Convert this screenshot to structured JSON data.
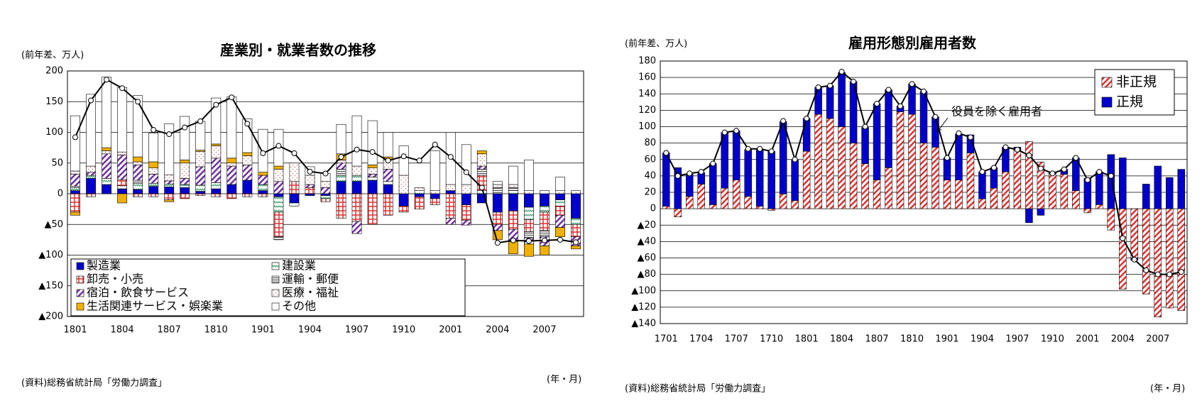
{
  "chart_data": [
    {
      "type": "bar",
      "stacked": true,
      "title": "産業別・就業者数の推移",
      "y_label": "(前年差、万人)",
      "x_label": "(年・月)",
      "source": "(資料)総務省統計局「労働力調査」",
      "categories": [
        "1801",
        null,
        null,
        "1804",
        null,
        null,
        "1807",
        null,
        null,
        "1810",
        null,
        null,
        "1901",
        null,
        null,
        "1904",
        null,
        null,
        "1907",
        null,
        null,
        "1910",
        null,
        null,
        "2001",
        null,
        null,
        "2004",
        null,
        null,
        "2007",
        null,
        null
      ],
      "ylim": [
        -200,
        200
      ],
      "yticks": [
        {
          "value": -200,
          "label": "▲200"
        },
        {
          "value": -150,
          "label": "▲150"
        },
        {
          "value": -100,
          "label": "▲100"
        },
        {
          "value": -50,
          "label": "▲50"
        },
        0,
        50,
        100,
        150,
        200
      ],
      "grid": true,
      "legend": "lower left",
      "series": [
        {
          "name": "製造業",
          "color": "#0000cc",
          "pattern": "solid",
          "values": [
            5,
            25,
            15,
            8,
            7,
            12,
            11,
            10,
            4,
            8,
            15,
            22,
            5,
            -5,
            -15,
            -3,
            -3,
            20,
            20,
            22,
            15,
            -20,
            -5,
            -8,
            5,
            -18,
            -15,
            -30,
            -28,
            -22,
            -20,
            -10,
            -40
          ]
        },
        {
          "name": "建設業",
          "color": "#339966",
          "pattern": "zigzag",
          "values": [
            5,
            5,
            10,
            5,
            10,
            5,
            5,
            5,
            10,
            10,
            0,
            0,
            10,
            -25,
            -5,
            0,
            -5,
            10,
            10,
            5,
            5,
            0,
            5,
            0,
            0,
            0,
            5,
            0,
            5,
            -20,
            -10,
            -10,
            -10
          ]
        },
        {
          "name": "卸売・小売",
          "color": "#e03030",
          "pattern": "grid",
          "values": [
            -30,
            -5,
            0,
            10,
            -5,
            -5,
            -10,
            -8,
            -3,
            -5,
            -8,
            -5,
            -5,
            -40,
            20,
            10,
            -5,
            -40,
            -45,
            -50,
            -35,
            -10,
            -20,
            -10,
            -40,
            -25,
            25,
            -20,
            -30,
            -20,
            -30,
            -15,
            -20
          ]
        },
        {
          "name": "運輸・郵便",
          "color": "#555555",
          "pattern": "hlines",
          "values": [
            2,
            0,
            0,
            0,
            5,
            0,
            0,
            0,
            0,
            0,
            0,
            0,
            0,
            -5,
            0,
            0,
            0,
            10,
            0,
            0,
            0,
            0,
            0,
            0,
            0,
            0,
            10,
            10,
            5,
            -10,
            -10,
            0,
            0
          ]
        },
        {
          "name": "宿泊・飲食サービス",
          "color": "#7030a0",
          "pattern": "diagonal",
          "values": [
            20,
            5,
            40,
            40,
            25,
            15,
            5,
            10,
            30,
            40,
            30,
            25,
            15,
            20,
            0,
            5,
            10,
            10,
            -20,
            5,
            20,
            0,
            0,
            0,
            -10,
            -8,
            5,
            -10,
            -20,
            -10,
            -15,
            -20,
            -15
          ]
        },
        {
          "name": "医療・福祉",
          "color": "#d07070",
          "pattern": "dots",
          "values": [
            5,
            10,
            5,
            5,
            5,
            10,
            10,
            25,
            25,
            20,
            5,
            15,
            0,
            20,
            30,
            15,
            10,
            5,
            15,
            10,
            15,
            30,
            5,
            5,
            10,
            15,
            20,
            5,
            5,
            5,
            0,
            5,
            5
          ]
        },
        {
          "name": "生活関連サービス・娯楽業",
          "color": "#f0b000",
          "pattern": "solid",
          "values": [
            -5,
            0,
            5,
            -15,
            8,
            10,
            -3,
            5,
            2,
            3,
            8,
            5,
            5,
            5,
            0,
            0,
            0,
            10,
            0,
            5,
            5,
            0,
            0,
            0,
            0,
            0,
            5,
            -15,
            -20,
            -20,
            -15,
            -15,
            -5
          ]
        },
        {
          "name": "その他",
          "color": "#ffffff",
          "pattern": "solid",
          "values": [
            90,
            117,
            115,
            105,
            100,
            47,
            83,
            71,
            47,
            75,
            100,
            55,
            70,
            60,
            0,
            14,
            13,
            48,
            82,
            72,
            40,
            48,
            0,
            65,
            85,
            65,
            0,
            5,
            30,
            50,
            5,
            22,
            0
          ]
        },
        {
          "type": "line",
          "color": "#000000",
          "values": [
            92,
            152,
            186,
            172,
            150,
            104,
            97,
            108,
            118,
            145,
            157,
            114,
            66,
            78,
            66,
            36,
            33,
            60,
            72,
            68,
            54,
            61,
            54,
            80,
            60,
            35,
            10,
            -80,
            -76,
            -77,
            -76,
            -75,
            -79
          ]
        }
      ]
    },
    {
      "type": "bar",
      "stacked": true,
      "title": "雇用形態別雇用者数",
      "y_label": "(前年差、万人)",
      "x_label": "(年・月)",
      "source": "(資料)総務省統計局「労働力調査」",
      "categories": [
        "1701",
        null,
        null,
        "1704",
        null,
        null,
        "1707",
        null,
        null,
        "1710",
        null,
        null,
        "1801",
        null,
        null,
        "1804",
        null,
        null,
        "1807",
        null,
        null,
        "1810",
        null,
        null,
        "1901",
        null,
        null,
        "1904",
        null,
        null,
        "1907",
        null,
        null,
        "1910",
        null,
        null,
        "2001",
        null,
        null,
        "2004",
        null,
        null,
        "2007",
        null,
        null
      ],
      "ylim": [
        -140,
        180
      ],
      "yticks": [
        {
          "value": -140,
          "label": "▲140"
        },
        {
          "value": -120,
          "label": "▲120"
        },
        {
          "value": -100,
          "label": "▲100"
        },
        {
          "value": -80,
          "label": "▲80"
        },
        {
          "value": -60,
          "label": "▲60"
        },
        {
          "value": -40,
          "label": "▲40"
        },
        {
          "value": -20,
          "label": "▲20"
        },
        0,
        20,
        40,
        60,
        80,
        100,
        120,
        140,
        160,
        180
      ],
      "grid": true,
      "legend": "upper right",
      "series": [
        {
          "name": "非正規",
          "color": "#e03030",
          "pattern": "diagonal",
          "values": [
            3,
            -10,
            15,
            30,
            5,
            25,
            35,
            15,
            3,
            -2,
            18,
            10,
            70,
            115,
            110,
            100,
            80,
            55,
            35,
            50,
            118,
            115,
            80,
            75,
            35,
            35,
            68,
            12,
            25,
            45,
            72,
            82,
            57,
            42,
            42,
            22,
            -5,
            5,
            -26,
            -98,
            -60,
            -104,
            -132,
            -121,
            -124
          ]
        },
        {
          "name": "正規",
          "color": "#0000cc",
          "pattern": "solid",
          "values": [
            65,
            50,
            27,
            14,
            50,
            68,
            60,
            57,
            70,
            70,
            88,
            50,
            40,
            33,
            40,
            66,
            75,
            44,
            93,
            95,
            7,
            37,
            63,
            37,
            27,
            56,
            22,
            33,
            25,
            30,
            3,
            -17,
            -8,
            3,
            6,
            40,
            37,
            40,
            66,
            62,
            -3,
            30,
            52,
            38,
            48
          ]
        },
        {
          "type": "line",
          "name": "役員を除く雇用者",
          "color": "#000000",
          "values": [
            68,
            40,
            43,
            45,
            55,
            93,
            95,
            73,
            73,
            70,
            107,
            60,
            110,
            148,
            150,
            167,
            155,
            100,
            128,
            145,
            125,
            152,
            143,
            112,
            62,
            92,
            87,
            45,
            50,
            75,
            72,
            65,
            49,
            43,
            48,
            62,
            35,
            45,
            40,
            -36,
            -62,
            -75,
            -80,
            -80,
            -77
          ]
        }
      ]
    }
  ]
}
